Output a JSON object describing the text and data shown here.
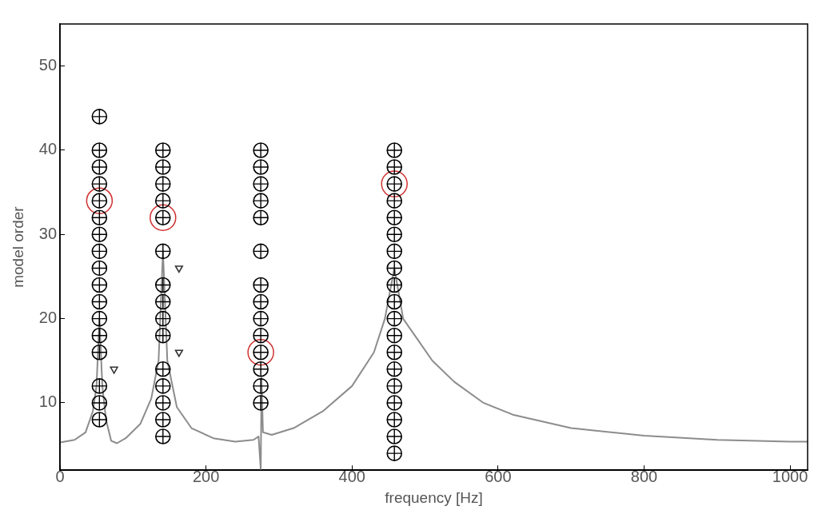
{
  "chart_data": {
    "type": "scatter",
    "xlabel": "frequency [Hz]",
    "ylabel": "model order",
    "xlim": [
      0,
      1024
    ],
    "ylim": [
      2,
      55
    ],
    "xticks": [
      0,
      200,
      400,
      600,
      800,
      1000
    ],
    "yticks": [
      10,
      20,
      30,
      40,
      50
    ],
    "grid": false,
    "legend": false,
    "series": [
      {
        "type": "line",
        "color": "#8c8c8c",
        "marker": "none",
        "line_style": "solid",
        "x": [
          0,
          20,
          35,
          45,
          50,
          54,
          58,
          63,
          70,
          78,
          90,
          110,
          125,
          135,
          141,
          147,
          160,
          180,
          210,
          240,
          265,
          272,
          275,
          276,
          278,
          290,
          320,
          360,
          400,
          430,
          445,
          458,
          470,
          486,
          510,
          540,
          580,
          620,
          700,
          800,
          900,
          1000,
          1024
        ],
        "values": [
          5.3,
          5.6,
          6.5,
          9,
          12,
          20,
          12,
          8,
          5.5,
          5.2,
          5.8,
          7.5,
          10.5,
          15,
          28,
          15,
          9.5,
          7,
          5.8,
          5.4,
          5.6,
          6,
          2,
          13,
          6.5,
          6.2,
          7,
          9,
          12,
          16,
          20,
          26,
          20,
          18,
          15,
          12.5,
          10,
          8.6,
          7,
          6.1,
          5.6,
          5.4,
          5.4
        ]
      },
      {
        "color": "#000000",
        "marker": "circle",
        "x": [
          54,
          54,
          54,
          54,
          54,
          54,
          54,
          54,
          54,
          54,
          54,
          54,
          54,
          54,
          54,
          54,
          54,
          141,
          141,
          141,
          141,
          141,
          141,
          141,
          141,
          141,
          141,
          141,
          141,
          141,
          141,
          141,
          275,
          275,
          275,
          275,
          275,
          275,
          275,
          275,
          275,
          275,
          275,
          275,
          275,
          275,
          458,
          458,
          458,
          458,
          458,
          458,
          458,
          458,
          458,
          458,
          458,
          458,
          458,
          458,
          458,
          458,
          458,
          458,
          458
        ],
        "values": [
          8,
          10,
          12,
          16,
          18,
          20,
          22,
          24,
          26,
          28,
          30,
          32,
          34,
          36,
          38,
          40,
          44,
          6,
          8,
          10,
          12,
          14,
          18,
          20,
          22,
          24,
          28,
          32,
          34,
          36,
          38,
          40,
          10,
          12,
          14,
          16,
          18,
          20,
          22,
          24,
          28,
          32,
          34,
          36,
          38,
          40,
          4,
          6,
          8,
          10,
          12,
          14,
          16,
          18,
          20,
          22,
          24,
          26,
          28,
          30,
          32,
          34,
          36,
          38,
          40
        ]
      },
      {
        "color": "#d03030",
        "marker": "circle",
        "x": [
          54,
          141,
          275,
          458
        ],
        "values": [
          34,
          32,
          16,
          36
        ]
      },
      {
        "color": "#333333",
        "marker": "triangle",
        "x": [
          74,
          163,
          163
        ],
        "values": [
          14,
          26,
          16
        ]
      }
    ]
  }
}
